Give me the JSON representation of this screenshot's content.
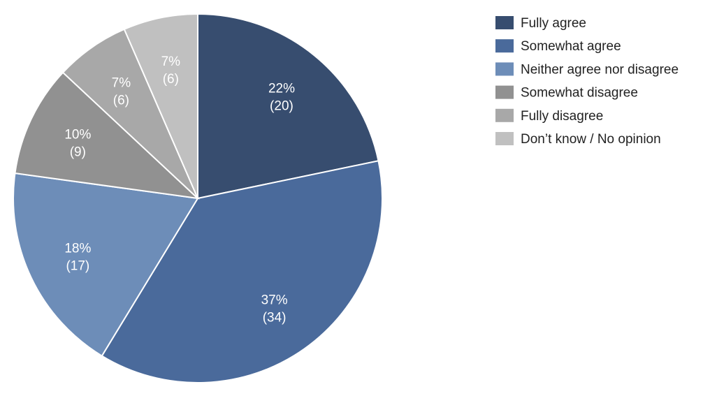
{
  "chart_data": {
    "type": "pie",
    "title": "",
    "legend_position": "right",
    "start_angle_deg": 0,
    "direction": "clockwise",
    "slices": [
      {
        "label": "Fully agree",
        "percent_label": "22%",
        "count_label": "(20)",
        "value": 20,
        "color": "#374d6f"
      },
      {
        "label": "Somewhat agree",
        "percent_label": "37%",
        "count_label": "(34)",
        "value": 34,
        "color": "#4a6a9b"
      },
      {
        "label": "Neither agree nor disagree",
        "percent_label": "18%",
        "count_label": "(17)",
        "value": 17,
        "color": "#6d8db8"
      },
      {
        "label": "Somewhat disagree",
        "percent_label": "10%",
        "count_label": "(9)",
        "value": 9,
        "color": "#919191"
      },
      {
        "label": "Fully disagree",
        "percent_label": "7%",
        "count_label": "(6)",
        "value": 6,
        "color": "#a8a8a8"
      },
      {
        "label": "Don’t know / No opinion",
        "percent_label": "7%",
        "count_label": "(6)",
        "value": 6,
        "color": "#c0c0c0"
      }
    ]
  }
}
